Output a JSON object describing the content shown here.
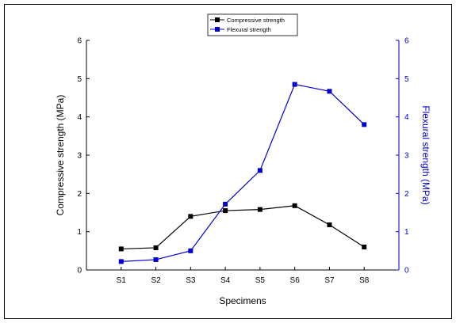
{
  "chart_data": {
    "type": "line",
    "xlabel": "Specimens",
    "ylabel_left": "Compressive strength (MPa)",
    "ylabel_right": "Flexural strength (MPa)",
    "categories": [
      "S1",
      "S2",
      "S3",
      "S4",
      "S5",
      "S6",
      "S7",
      "S8"
    ],
    "ylim_left": [
      0,
      6
    ],
    "ylim_right": [
      0,
      6
    ],
    "yticks_left": [
      "0",
      "1",
      "2",
      "3",
      "4",
      "5",
      "6"
    ],
    "yticks_right": [
      "0",
      "1",
      "2",
      "3",
      "4",
      "5",
      "6"
    ],
    "grid": false,
    "legend_position": "top-center",
    "series": [
      {
        "name": "Compressive strength",
        "axis": "left",
        "color": "#000000",
        "marker": "square",
        "values": [
          0.55,
          0.58,
          1.4,
          1.55,
          1.58,
          1.68,
          1.18,
          0.6
        ]
      },
      {
        "name": "Flexural strength",
        "axis": "right",
        "color": "#0000cc",
        "marker": "square",
        "values": [
          0.22,
          0.27,
          0.5,
          1.72,
          2.6,
          4.85,
          4.67,
          3.8
        ]
      }
    ]
  }
}
